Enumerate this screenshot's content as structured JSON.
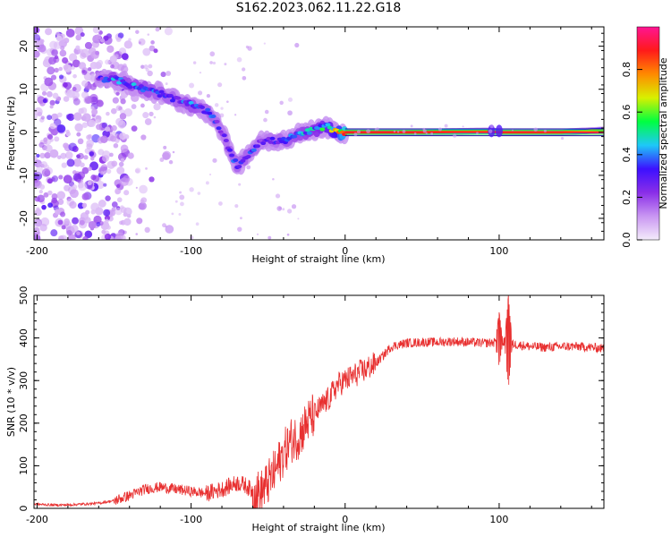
{
  "page": {
    "title": "S162.2023.062.11.22.G18"
  },
  "chart_data": [
    {
      "type": "heatmap",
      "xlabel": "Height of straight line (km)",
      "ylabel": "Frequency (Hz)",
      "xlim": [
        -202,
        168
      ],
      "ylim": [
        -25,
        24.5
      ],
      "xticks": [
        -200,
        -100,
        0,
        100
      ],
      "yticks": [
        -20,
        -10,
        0,
        10,
        20
      ],
      "colorbar": {
        "label": "Normalized spectral amplitude",
        "range": [
          0,
          1
        ],
        "ticks": [
          0.0,
          0.2,
          0.4,
          0.6,
          0.8
        ],
        "colors": [
          "#f4ecfb",
          "#c996f2",
          "#8a2ee8",
          "#3c10ff",
          "#1ec8f8",
          "#00ff40",
          "#d8f000",
          "#ff8a00",
          "#ff1a1a",
          "#ff1493"
        ]
      },
      "ridge": [
        {
          "x": -160,
          "y": 12.5,
          "amp": 0.25
        },
        {
          "x": -150,
          "y": 12.5,
          "amp": 0.35
        },
        {
          "x": -140,
          "y": 11,
          "amp": 0.35
        },
        {
          "x": -130,
          "y": 10,
          "amp": 0.35
        },
        {
          "x": -120,
          "y": 9,
          "amp": 0.3
        },
        {
          "x": -110,
          "y": 7.5,
          "amp": 0.3
        },
        {
          "x": -100,
          "y": 6.5,
          "amp": 0.35
        },
        {
          "x": -90,
          "y": 5,
          "amp": 0.3
        },
        {
          "x": -85,
          "y": 3,
          "amp": 0.3
        },
        {
          "x": -80,
          "y": 0,
          "amp": 0.25
        },
        {
          "x": -75,
          "y": -4,
          "amp": 0.3
        },
        {
          "x": -70,
          "y": -8,
          "amp": 0.3
        },
        {
          "x": -60,
          "y": -4,
          "amp": 0.3
        },
        {
          "x": -55,
          "y": -2,
          "amp": 0.25
        },
        {
          "x": -50,
          "y": -2,
          "amp": 0.25
        },
        {
          "x": -40,
          "y": -2,
          "amp": 0.3
        },
        {
          "x": -30,
          "y": -0.5,
          "amp": 0.35
        },
        {
          "x": -20,
          "y": 0.5,
          "amp": 0.4
        },
        {
          "x": -13,
          "y": 1.5,
          "amp": 0.45
        },
        {
          "x": -5,
          "y": 0,
          "amp": 0.6
        },
        {
          "x": 0,
          "y": 0,
          "amp": 0.85
        },
        {
          "x": 50,
          "y": 0,
          "amp": 0.85
        },
        {
          "x": 95,
          "y": 0.3,
          "amp": 0.8
        },
        {
          "x": 100,
          "y": 0,
          "amp": 0.8
        },
        {
          "x": 140,
          "y": 0,
          "amp": 0.8
        },
        {
          "x": 168,
          "y": 0.5,
          "amp": 0.6
        }
      ]
    },
    {
      "type": "line",
      "xlabel": "Height of straight line (km)",
      "ylabel": "SNR (10 * v/v)",
      "xlim": [
        -202,
        168
      ],
      "ylim": [
        0,
        500
      ],
      "xticks": [
        -200,
        -100,
        0,
        100
      ],
      "yticks": [
        0,
        100,
        200,
        300,
        400,
        500
      ],
      "color": "#e83030",
      "series": [
        {
          "x": [
            -202,
            -190,
            -180,
            -170,
            -160,
            -150,
            -140,
            -130,
            -120,
            -110,
            -100,
            -90,
            -80,
            -70,
            -65,
            -60,
            -55,
            -50,
            -45,
            -40,
            -35,
            -30,
            -25,
            -20,
            -15,
            -10,
            -5,
            0,
            5,
            10,
            15,
            20,
            25,
            30,
            40,
            50,
            60,
            70,
            80,
            90,
            100,
            105,
            110,
            120,
            130,
            140,
            150,
            160,
            168
          ],
          "y": [
            10,
            8,
            8,
            10,
            12,
            18,
            30,
            45,
            50,
            45,
            40,
            35,
            45,
            60,
            55,
            40,
            35,
            60,
            90,
            130,
            160,
            170,
            200,
            220,
            240,
            260,
            290,
            300,
            310,
            320,
            330,
            340,
            360,
            380,
            388,
            390,
            390,
            392,
            390,
            388,
            390,
            390,
            385,
            380,
            378,
            380,
            380,
            378,
            375
          ]
        }
      ],
      "spikes": [
        {
          "x": 100,
          "y_max": 460,
          "y_min": 330
        },
        {
          "x": 106,
          "y_max": 500,
          "y_min": 280
        }
      ]
    }
  ]
}
